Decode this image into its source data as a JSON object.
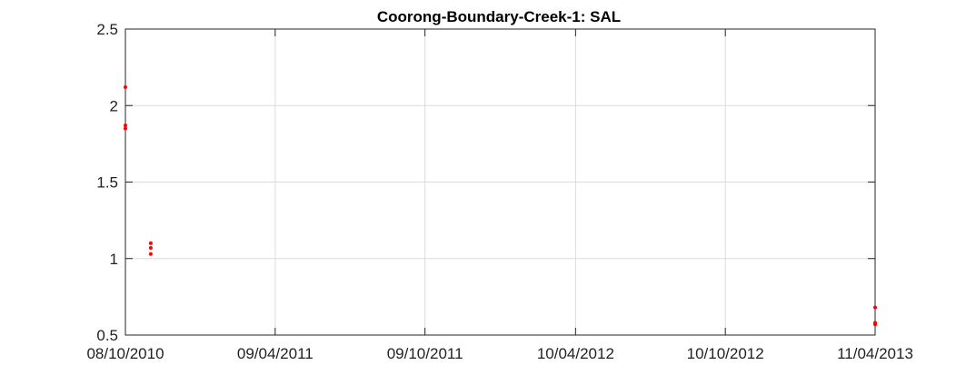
{
  "chart_data": {
    "type": "scatter",
    "title": "Coorong-Boundary-Creek-1: SAL",
    "xlabel": "",
    "ylabel": "",
    "x_ticks": [
      "08/10/2010",
      "09/04/2011",
      "09/10/2011",
      "10/04/2012",
      "10/10/2012",
      "11/04/2013"
    ],
    "y_ticks": [
      "0.5",
      "1",
      "1.5",
      "2",
      "2.5"
    ],
    "ylim": [
      0.5,
      2.5
    ],
    "xlim": [
      "08/10/2010",
      "11/04/2013"
    ],
    "grid": true,
    "colors": {
      "points": "#ff0000"
    },
    "series": [
      {
        "points": [
          {
            "x": "08/10/2010",
            "y": 2.12
          },
          {
            "x": "08/10/2010",
            "y": 1.87
          },
          {
            "x": "08/10/2010",
            "y": 1.85
          },
          {
            "x": "08/11/2010",
            "y": 1.1
          },
          {
            "x": "08/11/2010",
            "y": 1.07
          },
          {
            "x": "08/11/2010",
            "y": 1.03
          },
          {
            "x": "11/04/2013",
            "y": 0.68
          },
          {
            "x": "11/04/2013",
            "y": 0.58
          },
          {
            "x": "11/04/2013",
            "y": 0.57
          }
        ]
      }
    ]
  }
}
